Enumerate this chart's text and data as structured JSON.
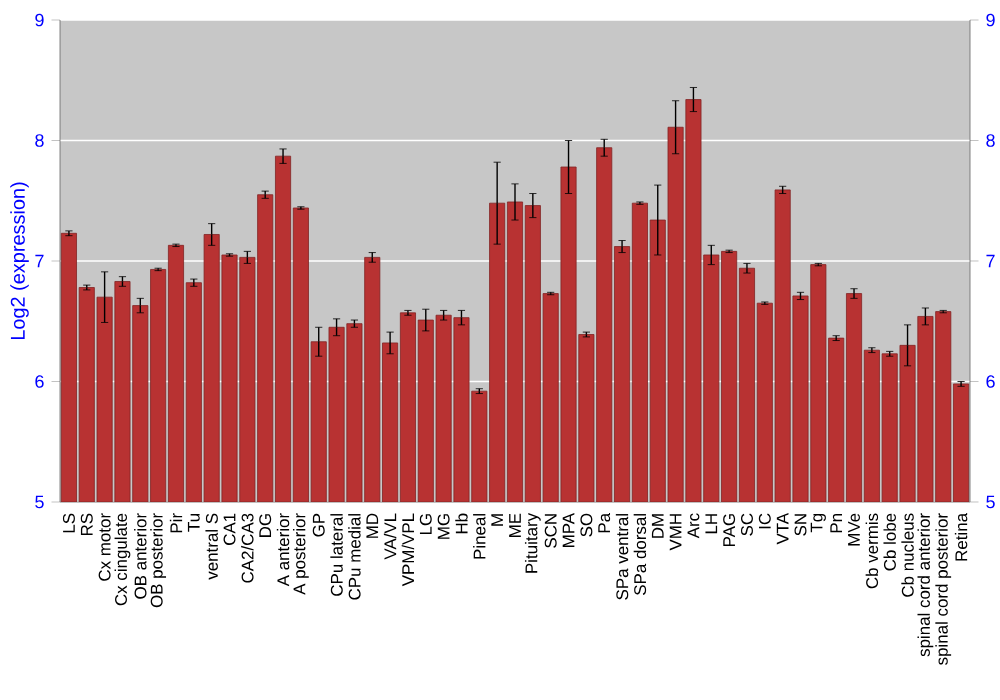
{
  "chart_data": {
    "type": "bar",
    "ylabel": "Log2 (expression)",
    "categories": [
      "LS",
      "RS",
      "Cx motor",
      "Cx cingulate",
      "OB anterior",
      "OB posterior",
      "Pir",
      "Tu",
      "ventral S",
      "CA1",
      "CA2/CA3",
      "DG",
      "A anterior",
      "A posterior",
      "GP",
      "CPu lateral",
      "CPu medial",
      "MD",
      "VA/VL",
      "VPM/VPL",
      "LG",
      "MG",
      "Hb",
      "Pineal",
      "M",
      "ME",
      "Pituitary",
      "SCN",
      "MPA",
      "SO",
      "Pa",
      "SPa ventral",
      "SPa dorsal",
      "DM",
      "VMH",
      "Arc",
      "LH",
      "PAG",
      "SC",
      "IC",
      "VTA",
      "SN",
      "Tg",
      "Pn",
      "MVe",
      "Cb vermis",
      "Cb lobe",
      "Cb nucleus",
      "spinal cord anterior",
      "spinal cord posterior",
      "Retina"
    ],
    "values": [
      7.23,
      6.78,
      6.7,
      6.83,
      6.63,
      6.93,
      7.13,
      6.82,
      7.22,
      7.05,
      7.03,
      7.55,
      7.87,
      7.44,
      6.33,
      6.45,
      6.48,
      7.03,
      6.32,
      6.57,
      6.51,
      6.55,
      6.53,
      5.92,
      7.48,
      7.49,
      7.46,
      6.73,
      7.78,
      6.39,
      7.94,
      7.12,
      7.48,
      7.34,
      8.11,
      8.34,
      7.05,
      7.08,
      6.94,
      6.65,
      7.59,
      6.71,
      6.97,
      6.36,
      6.73,
      6.26,
      6.23,
      6.3,
      6.54,
      6.58,
      5.98
    ],
    "errors": [
      0.02,
      0.02,
      0.21,
      0.04,
      0.06,
      0.01,
      0.01,
      0.03,
      0.09,
      0.01,
      0.05,
      0.03,
      0.06,
      0.01,
      0.12,
      0.07,
      0.03,
      0.04,
      0.09,
      0.02,
      0.09,
      0.04,
      0.06,
      0.02,
      0.34,
      0.15,
      0.1,
      0.01,
      0.22,
      0.02,
      0.07,
      0.05,
      0.01,
      0.29,
      0.22,
      0.1,
      0.08,
      0.01,
      0.04,
      0.01,
      0.03,
      0.03,
      0.01,
      0.02,
      0.04,
      0.02,
      0.02,
      0.17,
      0.07,
      0.01,
      0.02
    ],
    "color": "#b83232",
    "ylim": [
      5,
      9
    ],
    "yticks": [
      5,
      6,
      7,
      8,
      9
    ],
    "y2lim": [
      5,
      9
    ],
    "y2ticks": [
      5,
      6,
      7,
      8,
      9
    ],
    "grid": "y"
  }
}
